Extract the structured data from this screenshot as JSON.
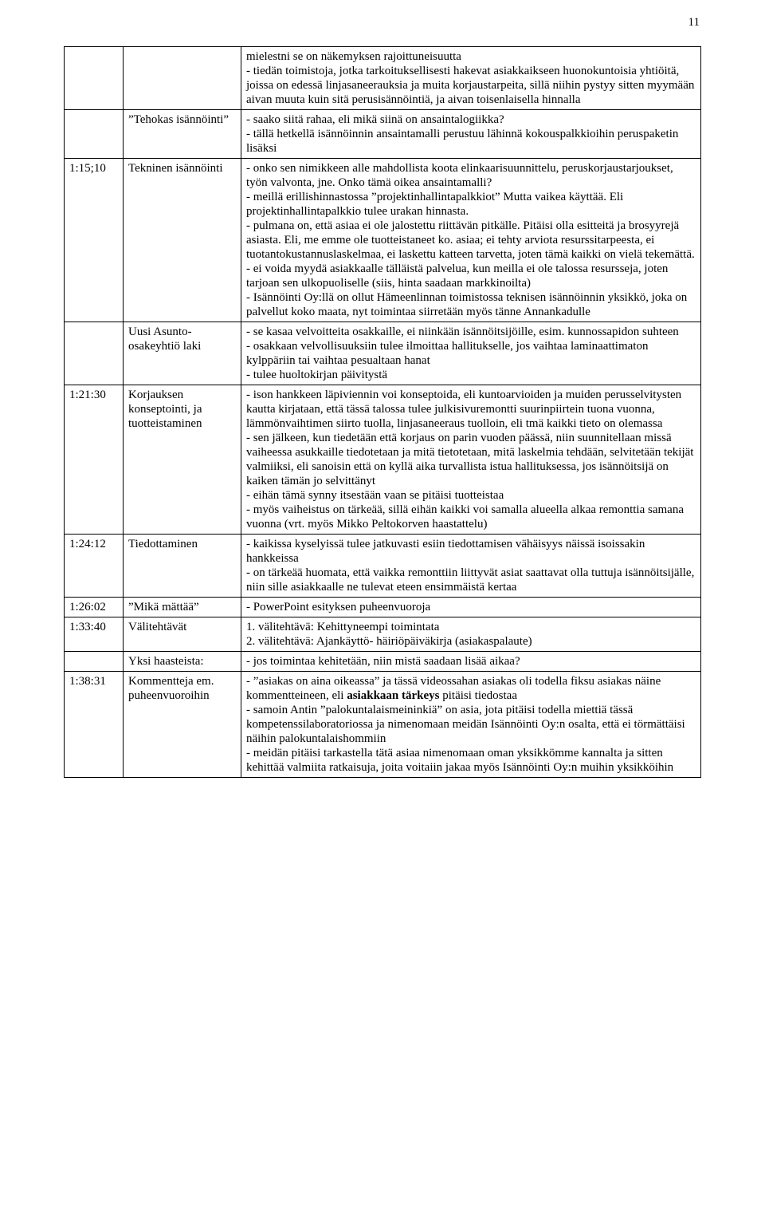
{
  "page_number": "11",
  "rows": [
    {
      "time": "",
      "topic": "",
      "content": "mielestni se on näkemyksen rajoittuneisuutta\n- tiedän toimistoja, jotka tarkoituksellisesti hakevat asiakkaikseen huonokuntoisia yhtiöitä, joissa on edessä linjasaneerauksia ja muita korjaustarpeita, sillä niihin pystyy sitten myymään aivan muuta kuin sitä perusisännöintiä, ja aivan toisenlaisella hinnalla"
    },
    {
      "time": "",
      "topic": "”Tehokas isännöinti”",
      "content": "- saako siitä rahaa, eli mikä siinä on ansaintalogiikka?\n- tällä hetkellä isännöinnin ansaintamalli perustuu lähinnä kokouspalkkioihin peruspaketin lisäksi"
    },
    {
      "time": "1:15;10",
      "topic": "Tekninen isännöinti",
      "content": "- onko sen nimikkeen alle mahdollista koota elinkaarisuunnittelu, peruskorjaustarjoukset, työn valvonta, jne. Onko tämä oikea ansaintamalli?\n- meillä erillishinnastossa ”projektinhallintapalkkiot” Mutta vaikea käyttää. Eli projektinhallintapalkkio tulee urakan hinnasta.\n- pulmana on, että asiaa ei ole jalostettu riittävän pitkälle. Pitäisi olla esitteitä ja brosyyrejä asiasta. Eli, me emme ole tuotteistaneet ko. asiaa; ei tehty arviota resurssitarpeesta, ei tuotantokustannuslaskelmaa, ei laskettu katteen tarvetta, joten tämä kaikki on vielä tekemättä.\n- ei voida myydä asiakkaalle tälläistä palvelua, kun meilla ei ole talossa resursseja, joten tarjoan sen ulkopuoliselle (siis, hinta saadaan markkinoilta)\n- Isännöinti Oy:llä on ollut Hämeenlinnan toimistossa teknisen isännöinnin yksikkö, joka on palvellut koko maata, nyt toimintaa siirretään myös tänne Annankadulle"
    },
    {
      "time": "",
      "topic": "Uusi Asunto-osakeyhtiö laki",
      "content": "- se kasaa velvoitteita osakkaille, ei niinkään isännöitsijöille, esim. kunnossapidon suhteen\n- osakkaan velvollisuuksiin tulee ilmoittaa hallitukselle, jos vaihtaa laminaattimaton kylppäriin tai vaihtaa pesualtaan hanat\n- tulee huoltokirjan päivitystä"
    },
    {
      "time": "1:21:30",
      "topic": "Korjauksen konseptointi, ja tuotteistaminen",
      "content": "- ison hankkeen läpiviennin voi konseptoida, eli kuntoarvioiden ja muiden perusselvitysten kautta kirjataan, että tässä talossa tulee julkisivuremontti suurinpiirtein tuona vuonna, lämmönvaihtimen siirto tuolla,  linjasaneeraus tuolloin, eli tmä kaikki tieto on olemassa\n- sen jälkeen, kun tiedetään että korjaus on parin vuoden päässä, niin suunnitellaan missä vaiheessa asukkaille tiedotetaan ja mitä tietotetaan, mitä laskelmia tehdään, selvitetään tekijät valmiiksi, eli sanoisin että on kyllä aika turvallista istua hallituksessa, jos isännöitsijä on kaiken tämän jo selvittänyt\n- eihän tämä synny itsestään vaan se pitäisi tuotteistaa\n- myös vaiheistus on tärkeää, sillä eihän kaikki voi samalla alueella alkaa remonttia samana vuonna (vrt. myös Mikko Peltokorven haastattelu)"
    },
    {
      "time": "1:24:12",
      "topic": "Tiedottaminen",
      "content": "- kaikissa kyselyissä tulee jatkuvasti esiin tiedottamisen vähäisyys näissä isoissakin hankkeissa\n- on tärkeää huomata, että vaikka remonttiin liittyvät asiat saattavat olla tuttuja isännöitsijälle, niin sille asiakkaalle ne tulevat eteen ensimmäistä kertaa"
    },
    {
      "time": "1:26:02",
      "topic": "”Mikä mättää”",
      "content": "- PowerPoint esityksen puheenvuoroja"
    },
    {
      "time": "1:33:40",
      "topic": "Välitehtävät",
      "content": "1. välitehtävä: Kehittyneempi toimintata\n2. välitehtävä: Ajankäyttö- häiriöpäiväkirja (asiakaspalaute)"
    },
    {
      "time": "",
      "topic": "Yksi haasteista:",
      "content": "- jos toimintaa kehitetään, niin mistä saadaan lisää aikaa?"
    },
    {
      "time": "1:38:31",
      "topic": "Kommentteja em. puheenvuoroihin",
      "content_html": "- ”asiakas on aina oikeassa” ja tässä videossahan asiakas oli todella fiksu asiakas näine kommentteineen, eli <b>asiakkaan tärkeys</b> pitäisi tiedostaa\n- samoin Antin ”palokuntalaismeininkiä” on asia, jota pitäisi todella miettiä tässä kompetenssilaboratoriossa ja nimenomaan meidän Isännöinti Oy:n osalta, että ei törmättäisi näihin palokuntalaishommiin\n- meidän pitäisi tarkastella tätä asiaa nimenomaan oman yksikkömme kannalta ja sitten kehittää valmiita ratkaisuja, joita voitaiin jakaa myös Isännöinti Oy:n muihin yksikköihin"
    }
  ]
}
